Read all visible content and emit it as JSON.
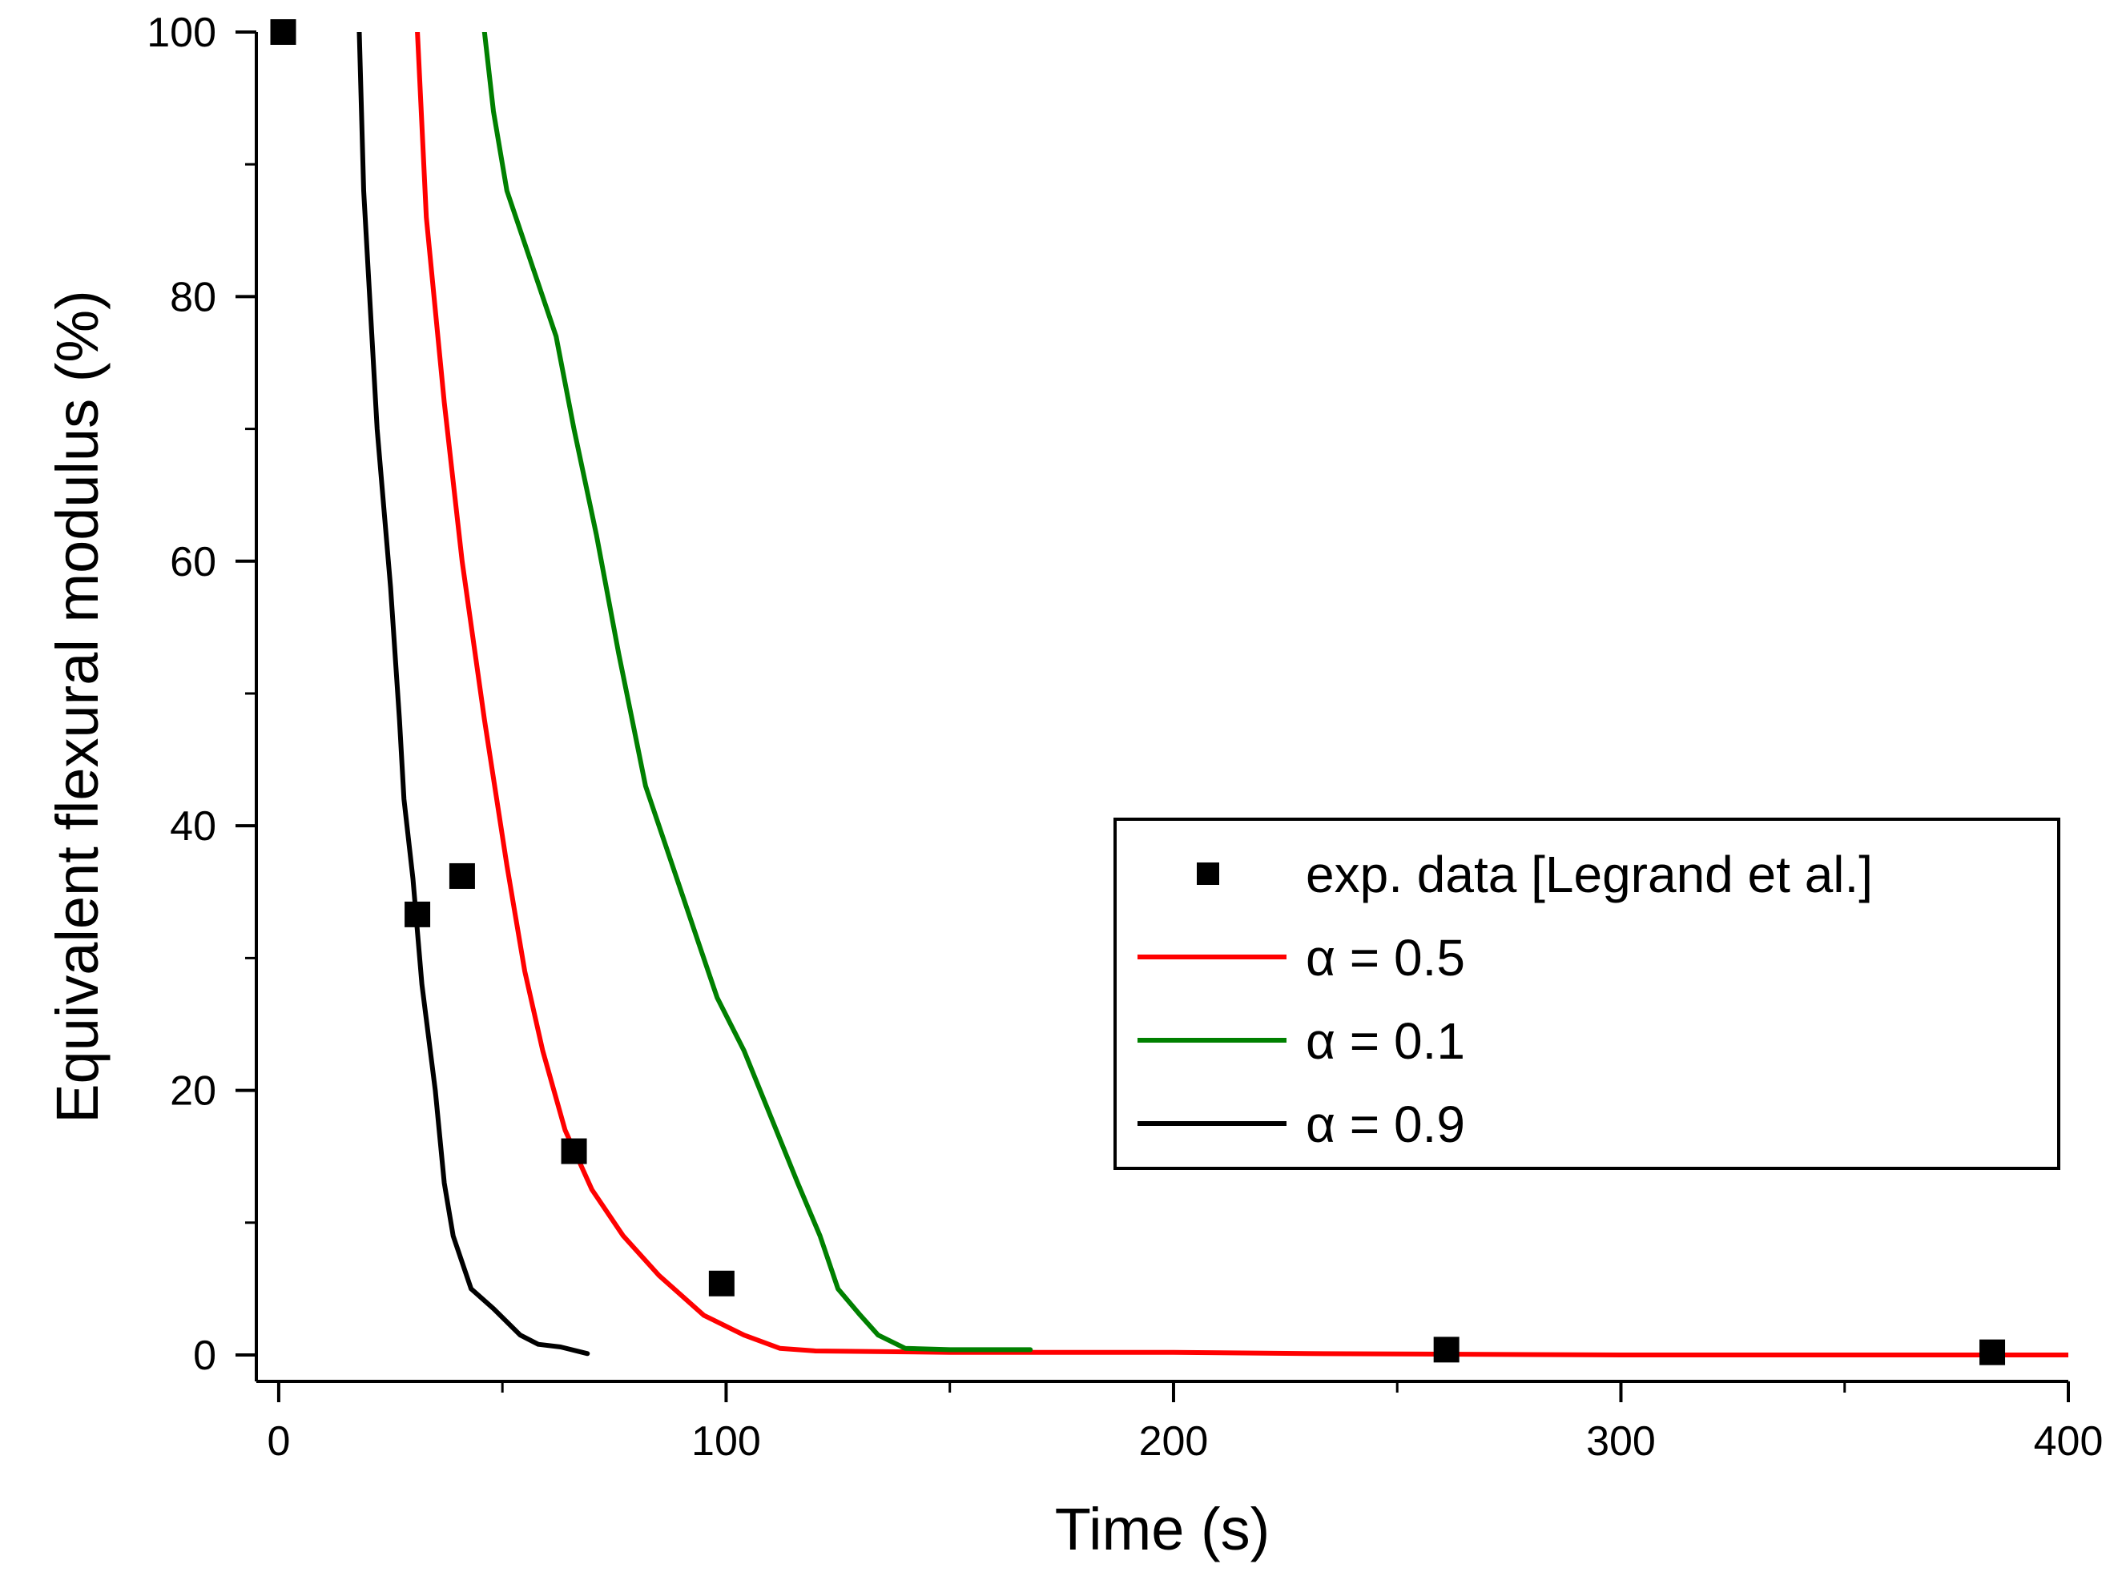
{
  "chart_data": {
    "type": "line",
    "title": "",
    "xlabel": "Time (s)",
    "ylabel": "Equivalent flexural modulus (%)",
    "xlim": [
      -5,
      400
    ],
    "ylim": [
      -2,
      100
    ],
    "xticks": [
      0,
      100,
      200,
      300,
      400
    ],
    "xtick_labels": [
      "0",
      "100",
      "200",
      "300",
      "400"
    ],
    "yticks": [
      0,
      20,
      40,
      60,
      80,
      100
    ],
    "ytick_labels": [
      "0",
      "20",
      "40",
      "60",
      "80",
      "100"
    ],
    "grid": false,
    "legend_position": "center-right",
    "series": [
      {
        "name": "exp. data [Legrand et al.]",
        "kind": "scatter",
        "marker": "square",
        "color": "#000000",
        "points": [
          [
            1,
            100
          ],
          [
            31,
            33.3
          ],
          [
            41,
            36.2
          ],
          [
            66,
            15.4
          ],
          [
            99,
            5.4
          ],
          [
            261,
            0.4
          ],
          [
            383,
            0.2
          ]
        ]
      },
      {
        "name": "α = 0.5",
        "kind": "line",
        "color": "#ff0000",
        "points": [
          [
            31,
            100
          ],
          [
            33,
            86
          ],
          [
            37,
            72
          ],
          [
            41,
            60
          ],
          [
            46,
            48
          ],
          [
            51,
            37
          ],
          [
            55,
            29
          ],
          [
            59,
            23
          ],
          [
            64,
            17
          ],
          [
            70,
            12.5
          ],
          [
            77,
            9
          ],
          [
            85,
            6
          ],
          [
            95,
            3
          ],
          [
            104,
            1.5
          ],
          [
            112,
            0.5
          ],
          [
            120,
            0.3
          ],
          [
            150,
            0.2
          ],
          [
            200,
            0.2
          ],
          [
            230,
            0.1
          ],
          [
            300,
            0
          ],
          [
            400,
            0
          ]
        ]
      },
      {
        "name": "α = 0.1",
        "kind": "line",
        "color": "#008000",
        "points": [
          [
            46,
            100
          ],
          [
            48,
            94
          ],
          [
            51,
            88
          ],
          [
            57,
            82
          ],
          [
            62,
            77
          ],
          [
            66,
            70
          ],
          [
            71,
            62
          ],
          [
            76,
            53
          ],
          [
            79,
            48
          ],
          [
            82,
            43
          ],
          [
            88,
            37
          ],
          [
            94,
            31
          ],
          [
            98,
            27
          ],
          [
            104,
            23
          ],
          [
            110,
            18
          ],
          [
            116,
            13
          ],
          [
            121,
            9
          ],
          [
            125,
            5
          ],
          [
            130,
            3
          ],
          [
            134,
            1.5
          ],
          [
            140,
            0.5
          ],
          [
            150,
            0.4
          ],
          [
            160,
            0.4
          ],
          [
            168,
            0.4
          ]
        ]
      },
      {
        "name": "α = 0.9",
        "kind": "line",
        "color": "#000000",
        "points": [
          [
            18,
            100
          ],
          [
            19,
            88
          ],
          [
            20,
            82
          ],
          [
            22,
            70
          ],
          [
            25,
            58
          ],
          [
            27,
            48
          ],
          [
            28,
            42
          ],
          [
            30,
            36
          ],
          [
            32,
            28
          ],
          [
            35,
            20
          ],
          [
            37,
            13
          ],
          [
            39,
            9
          ],
          [
            43,
            5
          ],
          [
            48,
            3.5
          ],
          [
            54,
            1.5
          ],
          [
            58,
            0.8
          ],
          [
            63,
            0.6
          ],
          [
            69,
            0.1
          ]
        ]
      }
    ]
  }
}
